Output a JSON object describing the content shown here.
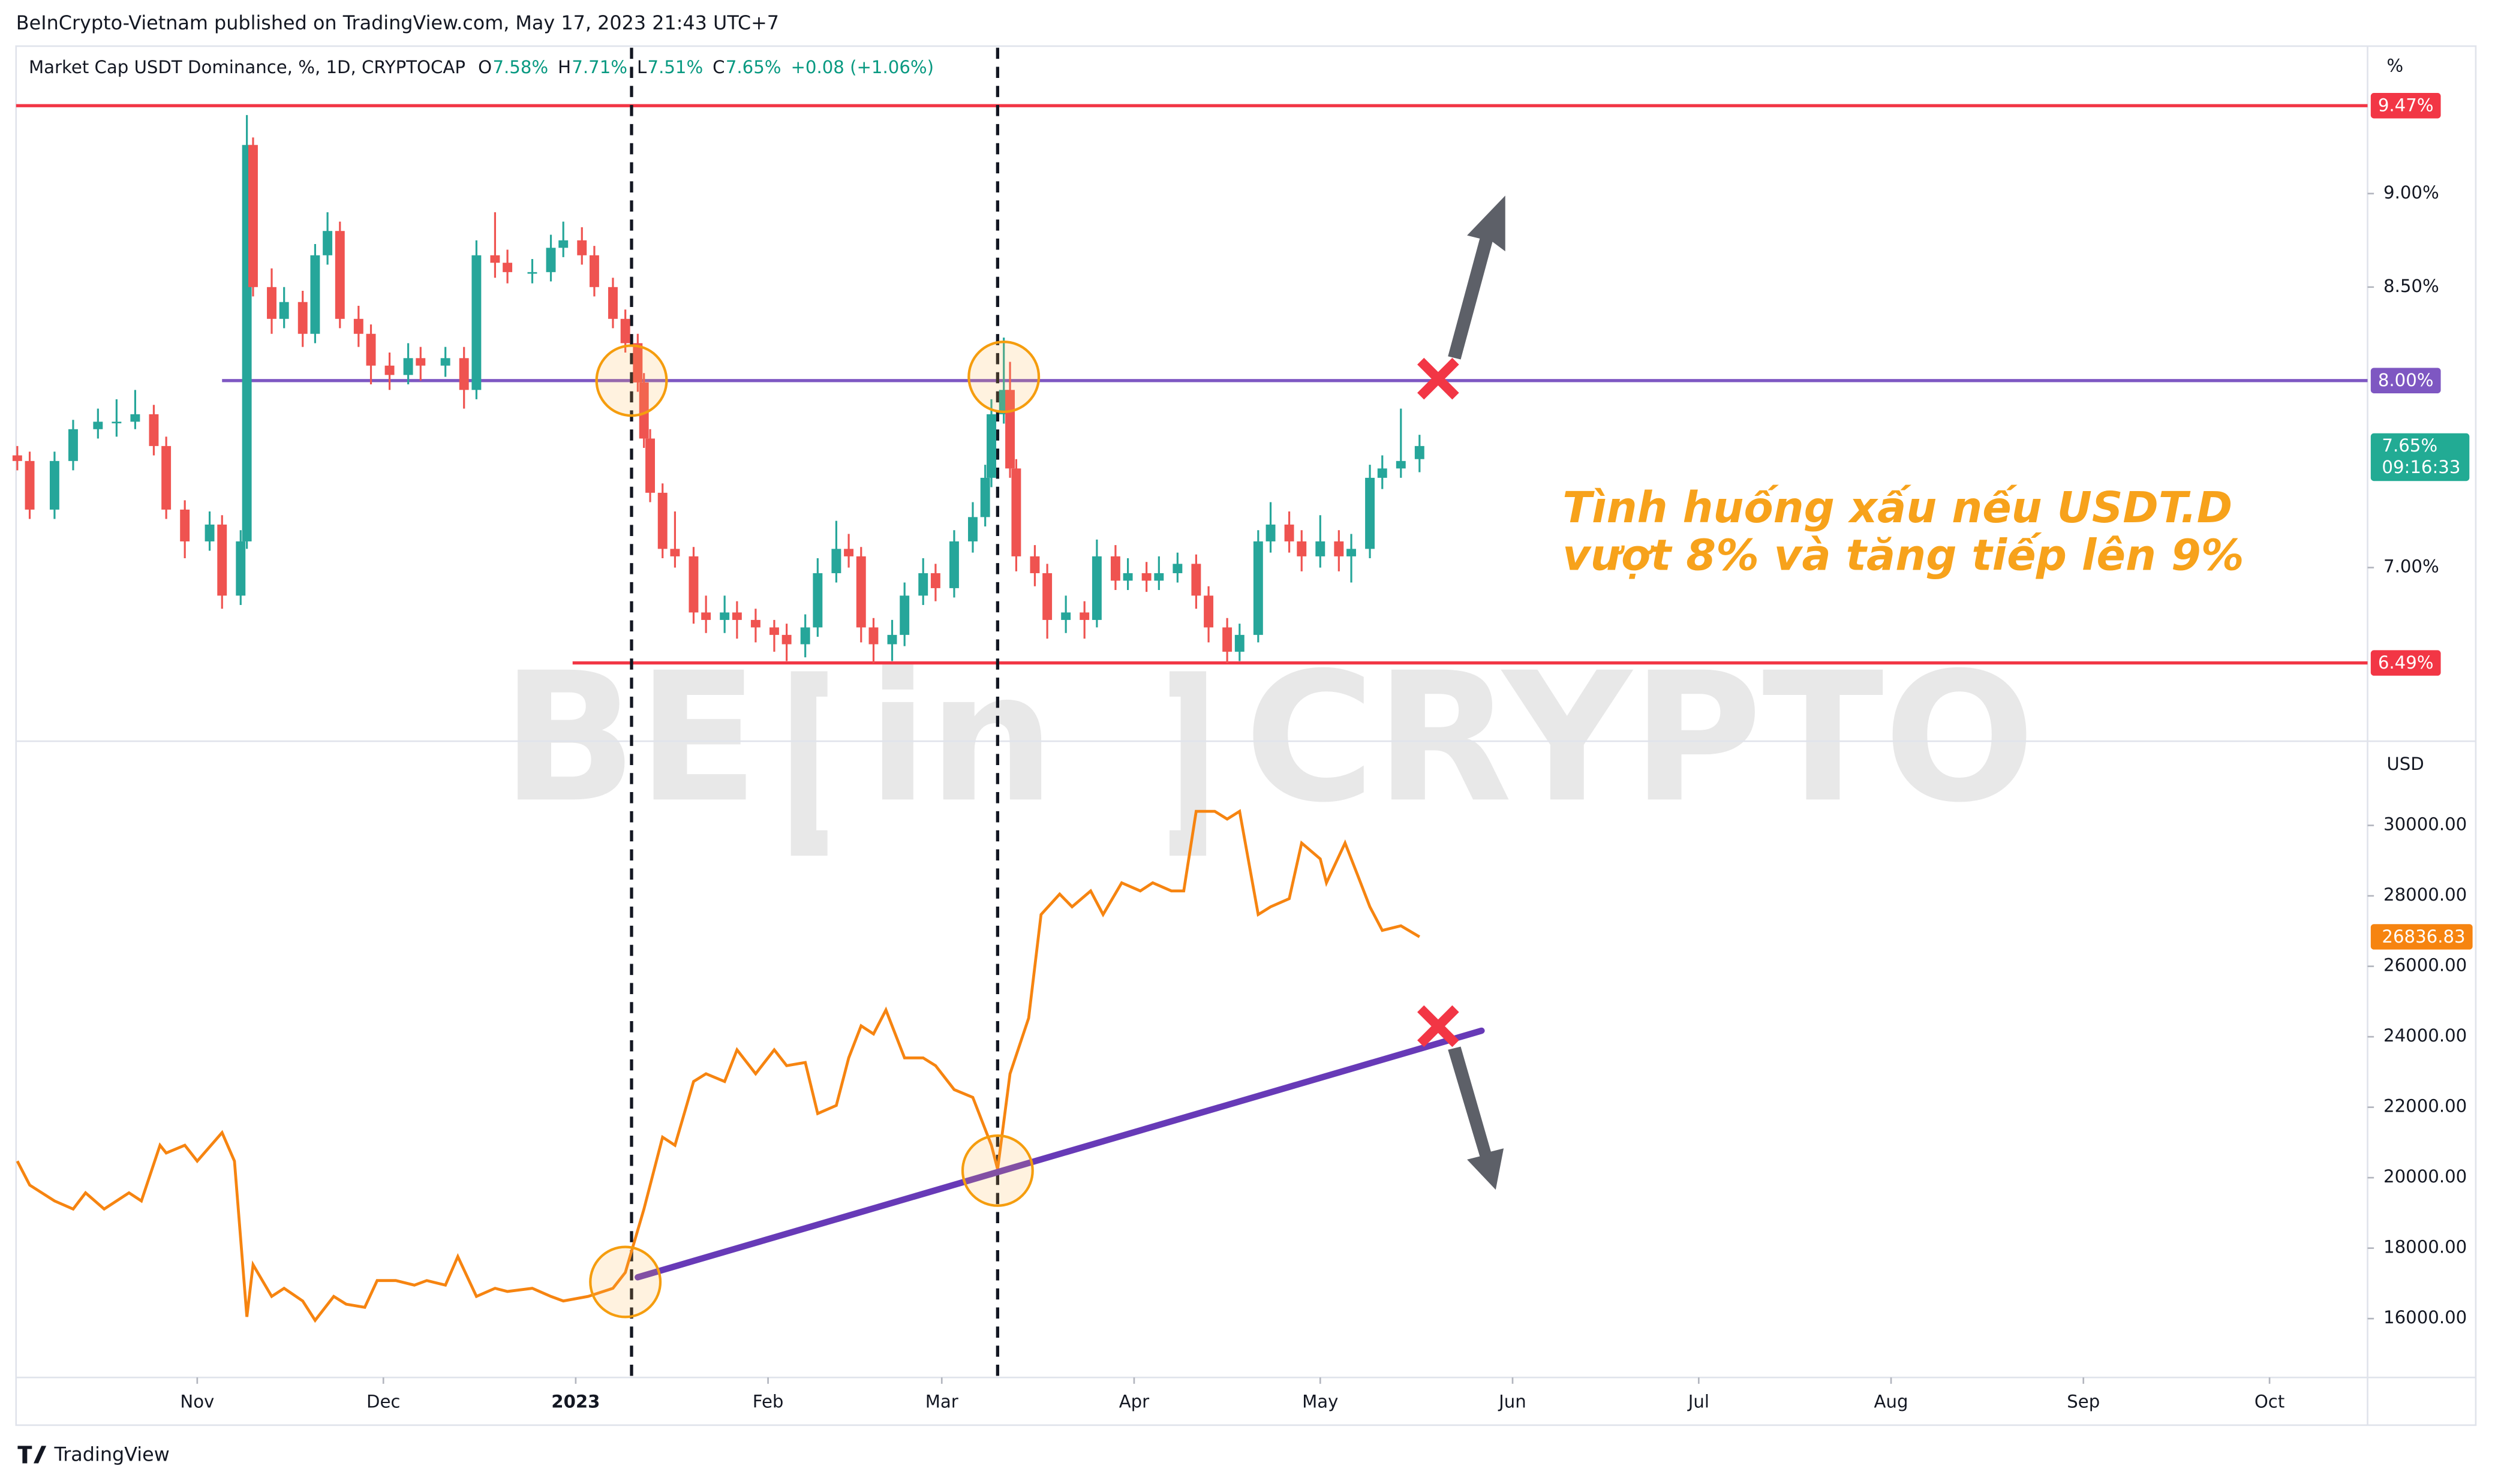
{
  "header": "BeInCrypto-Vietnam published on TradingView.com, May 17, 2023 21:43 UTC+7",
  "footer_logo": "TradingView",
  "watermark": [
    "BE",
    "in",
    "CRYPTO"
  ],
  "annotation": [
    "Tình huống xấu nếu USDT.D",
    "vượt 8% và tăng tiếp lên 9%"
  ],
  "chart_data": [
    {
      "type": "candlestick",
      "title": "Market Cap USDT Dominance, %, 1D, CRYPTOCAP",
      "legend": [
        "O",
        "7.58%",
        "H",
        "7.71%",
        "L",
        "7.51%",
        "C",
        "7.65%",
        "+0.08 (+1.06%)"
      ],
      "unit": "%",
      "up_color": "#26a69a",
      "down_color": "#ef5350",
      "xlim": [
        1.8,
        380.8
      ],
      "ylim": [
        6.08,
        9.78
      ],
      "yticks": [
        {
          "value": 7,
          "label": "7.00%"
        },
        {
          "value": 8.5,
          "label": "8.50%"
        },
        {
          "value": 9,
          "label": "9.00%"
        }
      ],
      "x": [
        2,
        4,
        8,
        11,
        15,
        18,
        21,
        24,
        26,
        29,
        33,
        35,
        38,
        39,
        40,
        43,
        45,
        48,
        50,
        52,
        54,
        57,
        59,
        62,
        65,
        67,
        71,
        74,
        76,
        79,
        81,
        85,
        88,
        90,
        93,
        95,
        98,
        100,
        102,
        103,
        104,
        106,
        108,
        111,
        113,
        116,
        118,
        121,
        124,
        126,
        129,
        131,
        134,
        136,
        138,
        140,
        143,
        145,
        148,
        150,
        153,
        156,
        158,
        159,
        161,
        162,
        163,
        166,
        168,
        171,
        174,
        176,
        179,
        181,
        184,
        186,
        189,
        192,
        194,
        197,
        199,
        202,
        204,
        207,
        209,
        212,
        215,
        217,
        220,
        222,
        225,
        228
      ],
      "open": [
        7.6,
        7.57,
        7.31,
        7.57,
        7.74,
        7.78,
        7.78,
        7.82,
        7.65,
        7.31,
        7.14,
        7.23,
        6.85,
        7.14,
        9.26,
        8.5,
        8.33,
        8.42,
        8.25,
        8.67,
        8.8,
        8.33,
        8.25,
        8.08,
        8.03,
        8.12,
        8.08,
        8.12,
        7.95,
        8.67,
        8.63,
        8.58,
        8.58,
        8.71,
        8.75,
        8.67,
        8.5,
        8.33,
        8.2,
        7.99,
        7.69,
        7.4,
        7.1,
        7.06,
        6.76,
        6.72,
        6.76,
        6.72,
        6.68,
        6.64,
        6.59,
        6.68,
        6.97,
        7.1,
        7.06,
        6.68,
        6.59,
        6.64,
        6.85,
        6.97,
        6.89,
        7.14,
        7.27,
        7.48,
        7.82,
        7.95,
        7.53,
        7.06,
        6.97,
        6.72,
        6.76,
        6.72,
        7.06,
        6.93,
        6.97,
        6.93,
        6.97,
        7.02,
        6.85,
        6.68,
        6.55,
        6.64,
        7.14,
        7.23,
        7.14,
        7.06,
        7.14,
        7.06,
        7.1,
        7.48,
        7.53,
        7.58
      ],
      "high": [
        7.65,
        7.62,
        7.62,
        7.79,
        7.85,
        7.9,
        7.95,
        7.87,
        7.7,
        7.36,
        7.3,
        7.28,
        7.2,
        9.42,
        9.3,
        8.6,
        8.5,
        8.48,
        8.73,
        8.9,
        8.85,
        8.4,
        8.3,
        8.15,
        8.2,
        8.18,
        8.18,
        8.18,
        8.75,
        8.9,
        8.7,
        8.65,
        8.78,
        8.85,
        8.82,
        8.72,
        8.55,
        8.38,
        8.25,
        8.04,
        7.74,
        7.45,
        7.3,
        7.11,
        6.85,
        6.85,
        6.82,
        6.78,
        6.72,
        6.7,
        6.75,
        7.05,
        7.25,
        7.18,
        7.11,
        6.73,
        6.72,
        6.92,
        7.05,
        7.02,
        7.2,
        7.35,
        7.55,
        7.9,
        8.23,
        8.1,
        7.58,
        7.12,
        7.02,
        6.85,
        6.82,
        7.15,
        7.12,
        7.05,
        7.03,
        7.06,
        7.08,
        7.07,
        6.9,
        6.73,
        6.7,
        7.2,
        7.35,
        7.3,
        7.2,
        7.28,
        7.2,
        7.18,
        7.55,
        7.6,
        7.85,
        7.71
      ],
      "low": [
        7.52,
        7.26,
        7.26,
        7.52,
        7.69,
        7.7,
        7.74,
        7.6,
        7.26,
        7.05,
        7.09,
        6.78,
        6.8,
        7.1,
        8.45,
        8.25,
        8.28,
        8.18,
        8.2,
        8.62,
        8.28,
        8.18,
        7.98,
        7.95,
        7.98,
        8.0,
        8.02,
        7.85,
        7.9,
        8.55,
        8.52,
        8.52,
        8.53,
        8.66,
        8.62,
        8.45,
        8.28,
        8.15,
        7.94,
        7.64,
        7.35,
        7.05,
        7.0,
        6.7,
        6.65,
        6.65,
        6.62,
        6.6,
        6.55,
        6.5,
        6.52,
        6.63,
        6.92,
        7.0,
        6.6,
        6.49,
        6.5,
        6.58,
        6.8,
        6.82,
        6.84,
        7.08,
        7.22,
        7.43,
        7.77,
        7.48,
        6.98,
        6.9,
        6.62,
        6.65,
        6.62,
        6.68,
        6.88,
        6.88,
        6.87,
        6.88,
        6.92,
        6.78,
        6.6,
        6.49,
        6.5,
        6.6,
        7.08,
        7.08,
        6.98,
        7.0,
        6.98,
        6.92,
        7.05,
        7.42,
        7.48,
        7.51
      ],
      "close": [
        7.57,
        7.31,
        7.57,
        7.74,
        7.78,
        7.78,
        7.82,
        7.65,
        7.31,
        7.14,
        7.23,
        6.85,
        7.14,
        9.26,
        8.5,
        8.33,
        8.42,
        8.25,
        8.67,
        8.8,
        8.33,
        8.25,
        8.08,
        8.03,
        8.12,
        8.08,
        8.12,
        7.95,
        8.67,
        8.63,
        8.58,
        8.58,
        8.71,
        8.75,
        8.67,
        8.5,
        8.33,
        8.2,
        7.99,
        7.69,
        7.4,
        7.1,
        7.06,
        6.76,
        6.72,
        6.76,
        6.72,
        6.68,
        6.64,
        6.59,
        6.68,
        6.97,
        7.1,
        7.06,
        6.68,
        6.59,
        6.64,
        6.85,
        6.97,
        6.89,
        7.14,
        7.27,
        7.48,
        7.82,
        7.95,
        7.53,
        7.06,
        6.97,
        6.72,
        6.76,
        6.72,
        7.06,
        6.93,
        6.97,
        6.93,
        6.97,
        7.02,
        6.85,
        6.68,
        6.55,
        6.64,
        7.14,
        7.23,
        7.14,
        7.06,
        7.14,
        7.06,
        7.1,
        7.48,
        7.53,
        7.57,
        7.65
      ],
      "hlines": [
        {
          "value": 9.47,
          "label": "9.47%",
          "color": "#f23645",
          "from": 1.8
        },
        {
          "value": 8,
          "label": "8.00%",
          "color": "#7e57c2",
          "from": 35
        },
        {
          "value": 6.49,
          "label": "6.49%",
          "color": "#f23645",
          "from": 91.5
        }
      ],
      "price_labels": [
        {
          "value": 7.65,
          "label": "7.65%",
          "sublabel": "09:16:33",
          "color": "#22ab94"
        }
      ],
      "vlines": [
        101,
        160
      ],
      "highlights": [
        {
          "x": 101,
          "y": 8.0
        },
        {
          "x": 161,
          "y": 8.02
        }
      ],
      "cross": {
        "x": 231,
        "y": 8.01
      }
    },
    {
      "type": "line",
      "unit": "USD",
      "color": "#f68410",
      "xlim": [
        1.8,
        380.8
      ],
      "ylim": [
        14330,
        32390
      ],
      "yticks": [
        {
          "value": 16000,
          "label": "16000.00"
        },
        {
          "value": 18000,
          "label": "18000.00"
        },
        {
          "value": 20000,
          "label": "20000.00"
        },
        {
          "value": 22000,
          "label": "22000.00"
        },
        {
          "value": 24000,
          "label": "24000.00"
        },
        {
          "value": 26000,
          "label": "26000.00"
        },
        {
          "value": 28000,
          "label": "28000.00"
        },
        {
          "value": 30000,
          "label": "30000.00"
        }
      ],
      "xticks": [
        {
          "value": 31,
          "label": "Nov"
        },
        {
          "value": 61,
          "label": "Dec"
        },
        {
          "value": 92,
          "label": "2023"
        },
        {
          "value": 123,
          "label": "Feb"
        },
        {
          "value": 151,
          "label": "Mar"
        },
        {
          "value": 182,
          "label": "Apr"
        },
        {
          "value": 212,
          "label": "May"
        },
        {
          "value": 243,
          "label": "Jun"
        },
        {
          "value": 273,
          "label": "Jul"
        },
        {
          "value": 304,
          "label": "Aug"
        },
        {
          "value": 335,
          "label": "Sep"
        },
        {
          "value": 365,
          "label": "Oct"
        }
      ],
      "x": [
        2,
        4,
        8,
        11,
        13,
        16,
        20,
        22,
        25,
        26,
        29,
        31,
        35,
        37,
        39,
        40,
        43,
        45,
        48,
        50,
        53,
        55,
        58,
        60,
        63,
        66,
        68,
        71,
        73,
        76,
        79,
        81,
        85,
        88,
        90,
        94,
        98,
        100,
        103,
        106,
        108,
        111,
        113,
        116,
        118,
        121,
        124,
        126,
        129,
        131,
        134,
        136,
        138,
        140,
        142,
        145,
        148,
        150,
        153,
        156,
        159,
        160,
        162,
        165,
        167,
        170,
        172,
        175,
        177,
        180,
        183,
        185,
        188,
        190,
        192,
        195,
        197,
        199,
        202,
        204,
        207,
        209,
        212,
        213,
        216,
        218,
        220,
        222,
        225,
        228
      ],
      "values": [
        20470,
        19790,
        19340,
        19110,
        19570,
        19110,
        19570,
        19340,
        20920,
        20700,
        20920,
        20470,
        21280,
        20470,
        16050,
        17530,
        16630,
        16860,
        16500,
        15950,
        16630,
        16410,
        16320,
        17080,
        17080,
        16950,
        17080,
        16950,
        17760,
        16630,
        16860,
        16770,
        16860,
        16630,
        16500,
        16630,
        16860,
        17310,
        19110,
        21150,
        20920,
        22730,
        22950,
        22730,
        23630,
        22950,
        23630,
        23180,
        23270,
        21820,
        22050,
        23400,
        24310,
        24080,
        24760,
        23400,
        23400,
        23180,
        22500,
        22280,
        20920,
        20240,
        22950,
        24530,
        27470,
        28050,
        27690,
        28140,
        27470,
        28370,
        28140,
        28370,
        28140,
        28140,
        30400,
        30400,
        30180,
        30400,
        27470,
        27690,
        27920,
        29500,
        29050,
        28370,
        29500,
        28600,
        27690,
        27020,
        27150,
        26836.83
      ],
      "price_labels": [
        {
          "value": 26836.83,
          "color": "#f68410"
        }
      ],
      "trendline": {
        "x": [
          102,
          238
        ],
        "y": [
          17174,
          24172
        ],
        "color": "#673ab7"
      },
      "highlights": [
        {
          "x": 100,
          "y": 17040
        },
        {
          "x": 160,
          "y": 20200
        }
      ],
      "cross": {
        "x": 231,
        "y": 24300
      }
    }
  ]
}
